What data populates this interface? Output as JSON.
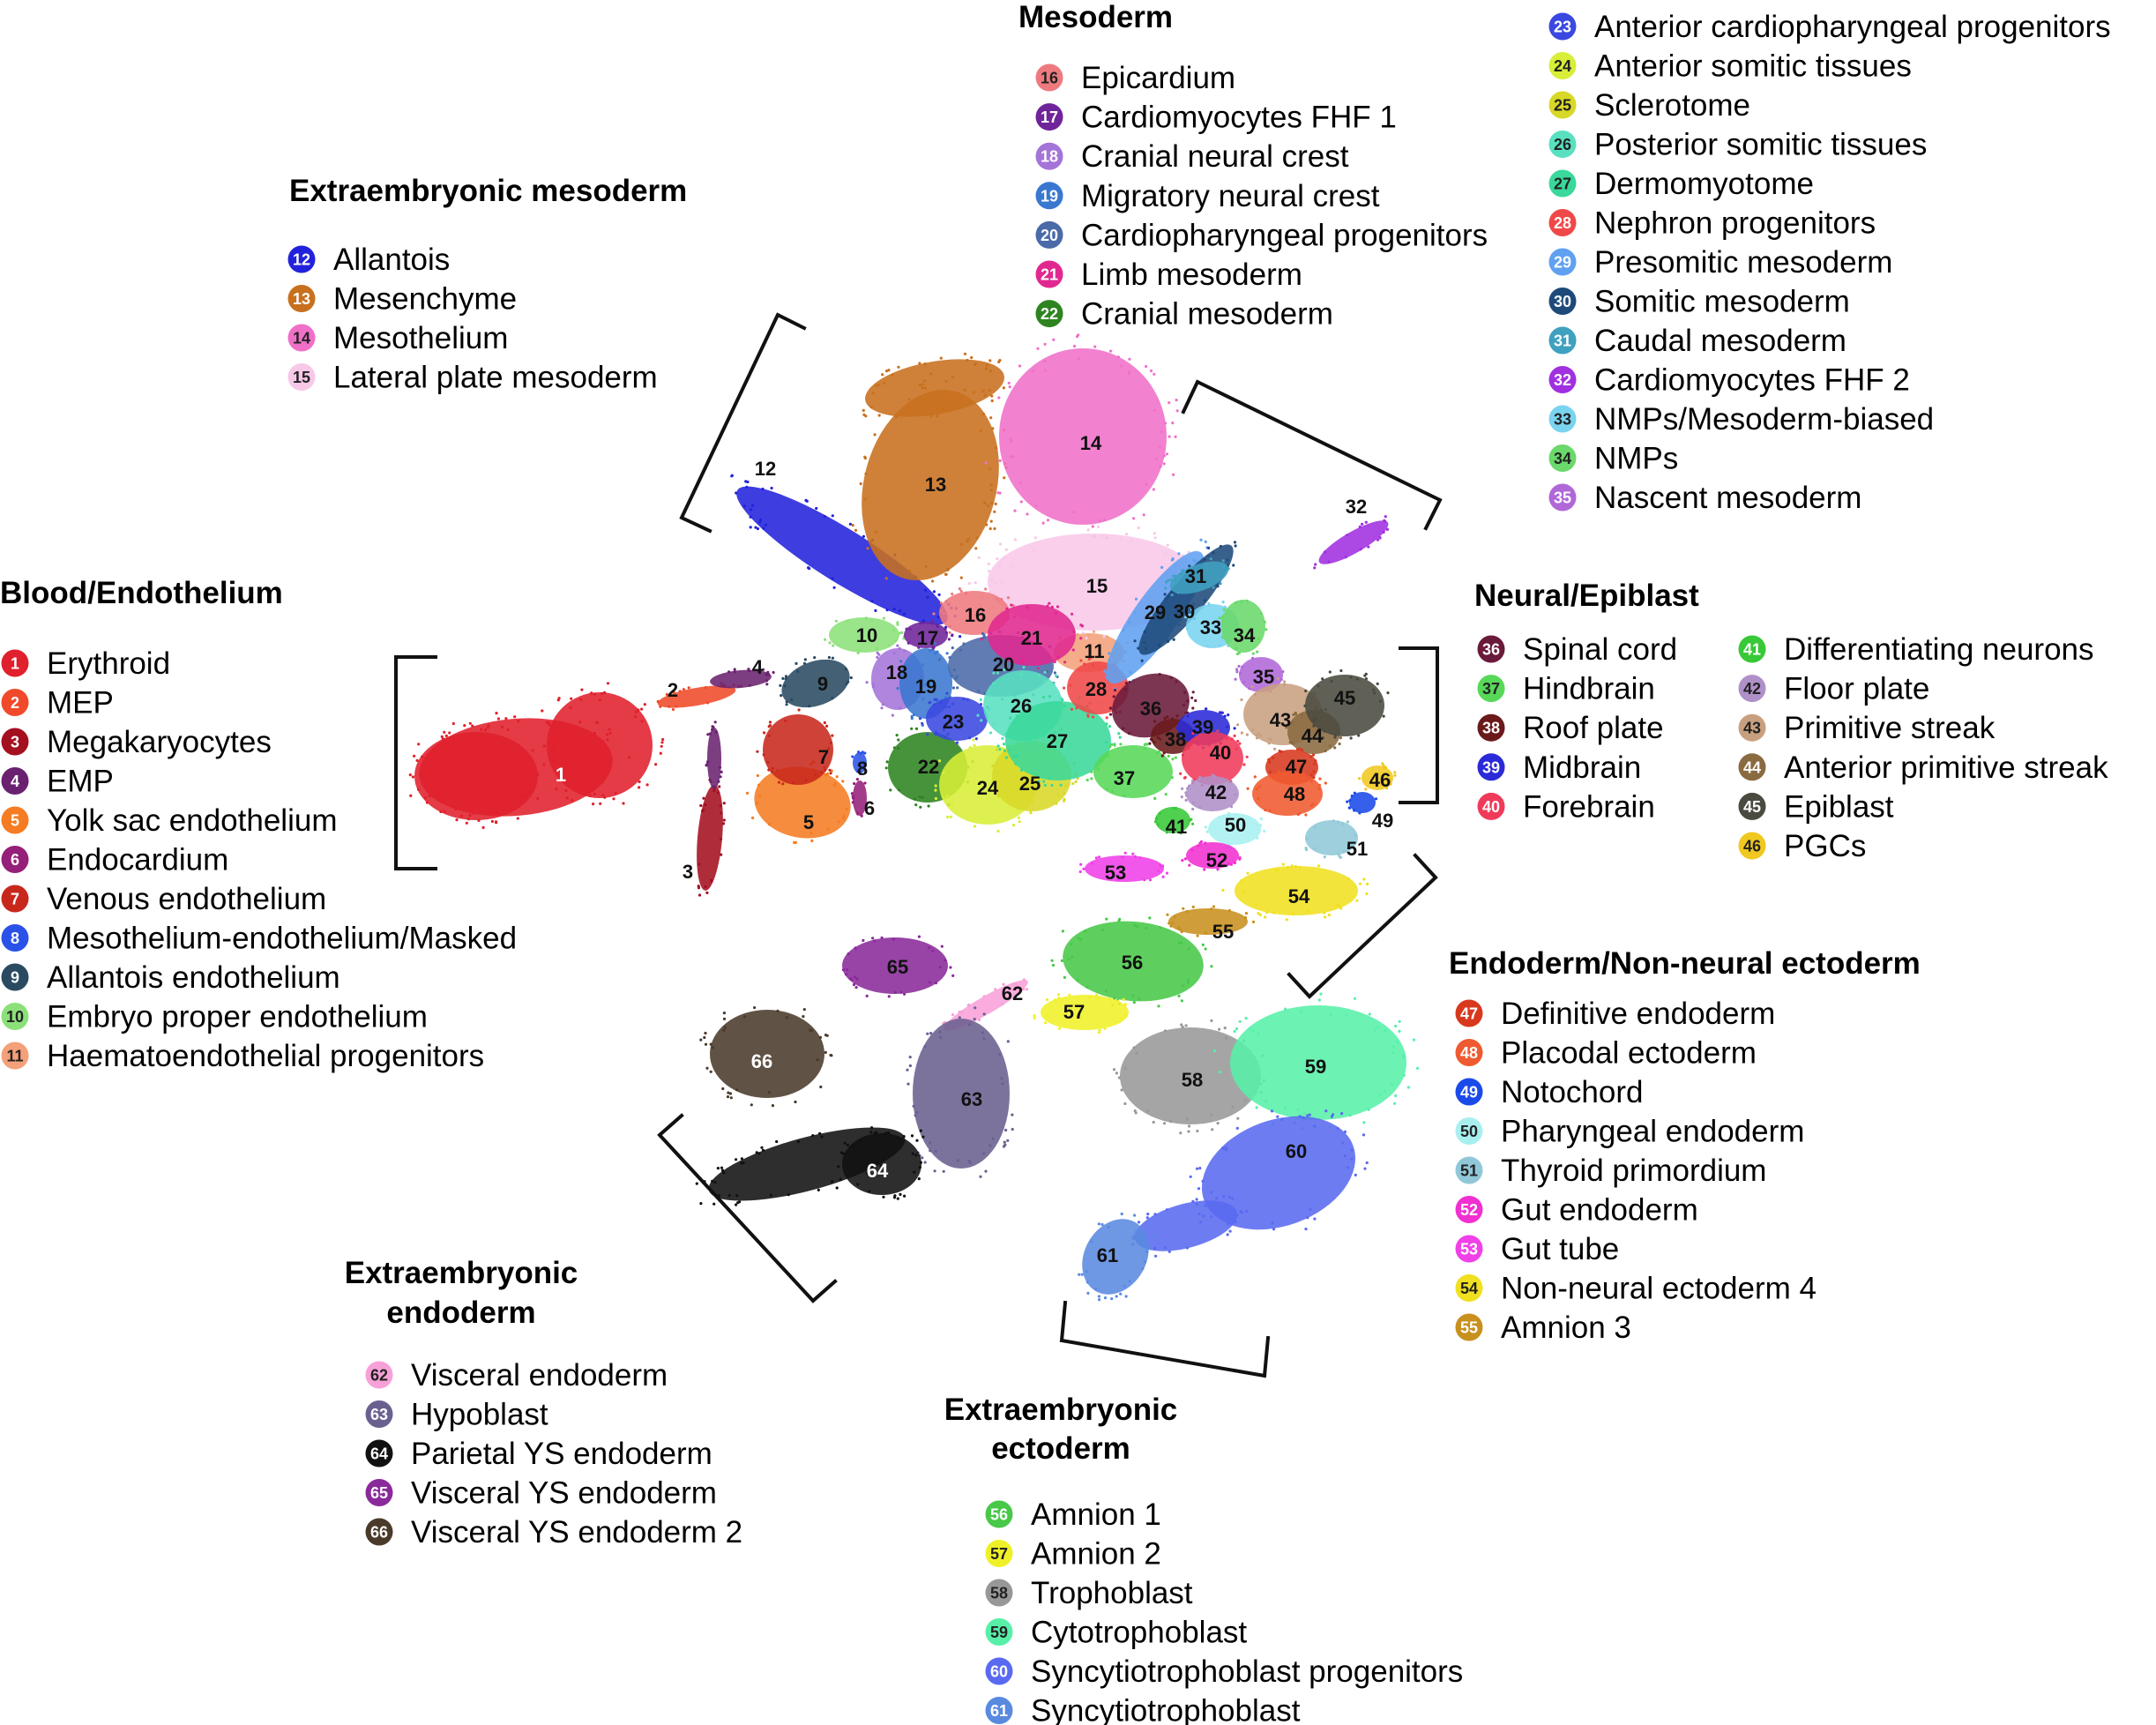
{
  "chart_data": {
    "type": "scatter",
    "title": "",
    "xlabel": "",
    "ylabel": "",
    "grid": false,
    "groups": [
      {
        "title": "Mesoderm",
        "clusters": [
          16,
          17,
          18,
          19,
          20,
          21,
          22
        ]
      },
      {
        "title": "Extraembryonic mesoderm",
        "clusters": [
          12,
          13,
          14,
          15
        ]
      },
      {
        "title": "Blood/Endothelium",
        "clusters": [
          1,
          2,
          3,
          4,
          5,
          6,
          7,
          8,
          9,
          10,
          11
        ]
      },
      {
        "title": "Neural/Epiblast",
        "clusters": [
          36,
          37,
          38,
          39,
          40,
          41,
          42,
          43,
          44,
          45,
          46
        ]
      },
      {
        "title": "Endoderm/Non-neural ectoderm",
        "clusters": [
          47,
          48,
          49,
          50,
          51,
          52,
          53,
          54,
          55
        ]
      },
      {
        "title": "Extraembryonic endoderm",
        "clusters": [
          62,
          63,
          64,
          65,
          66
        ]
      },
      {
        "title": "Extraembryonic ectoderm",
        "clusters": [
          56,
          57,
          58,
          59,
          60,
          61
        ]
      },
      {
        "title": "",
        "clusters": [
          23,
          24,
          25,
          26,
          27,
          28,
          29,
          30,
          31,
          32,
          33,
          34,
          35
        ]
      }
    ],
    "clusters": [
      {
        "id": "1",
        "name": "Erythroid",
        "color": "#e0202c",
        "group": "Blood/Endothelium"
      },
      {
        "id": "2",
        "name": "MEP",
        "color": "#f04a2a",
        "group": "Blood/Endothelium"
      },
      {
        "id": "3",
        "name": "Megakaryocytes",
        "color": "#a41020",
        "group": "Blood/Endothelium"
      },
      {
        "id": "4",
        "name": "EMP",
        "color": "#6a2270",
        "group": "Blood/Endothelium"
      },
      {
        "id": "5",
        "name": "Yolk sac endothelium",
        "color": "#f57c22",
        "group": "Blood/Endothelium"
      },
      {
        "id": "6",
        "name": "Endocardium",
        "color": "#94207a",
        "group": "Blood/Endothelium"
      },
      {
        "id": "7",
        "name": "Venous endothelium",
        "color": "#c8281c",
        "group": "Blood/Endothelium"
      },
      {
        "id": "8",
        "name": "Mesothelium-endothelium/Masked",
        "color": "#2a52e8",
        "group": "Blood/Endothelium"
      },
      {
        "id": "9",
        "name": "Allantois endothelium",
        "color": "#2a4a62",
        "group": "Blood/Endothelium"
      },
      {
        "id": "10",
        "name": "Embryo proper endothelium",
        "color": "#8ce07a",
        "group": "Blood/Endothelium"
      },
      {
        "id": "11",
        "name": "Haematoendothelial progenitors",
        "color": "#f4a07a",
        "group": "Blood/Endothelium"
      },
      {
        "id": "12",
        "name": "Allantois",
        "color": "#2222dc",
        "group": "Extraembryonic mesoderm"
      },
      {
        "id": "13",
        "name": "Mesenchyme",
        "color": "#c8701e",
        "group": "Extraembryonic mesoderm"
      },
      {
        "id": "14",
        "name": "Mesothelium",
        "color": "#f070c8",
        "group": "Extraembryonic mesoderm"
      },
      {
        "id": "15",
        "name": "Lateral plate mesoderm",
        "color": "#f8c8e8",
        "group": "Extraembryonic mesoderm"
      },
      {
        "id": "16",
        "name": "Epicardium",
        "color": "#ee7a80",
        "group": "Mesoderm"
      },
      {
        "id": "17",
        "name": "Cardiomyocytes FHF 1",
        "color": "#70249a",
        "group": "Mesoderm"
      },
      {
        "id": "18",
        "name": "Cranial neural crest",
        "color": "#a474d8",
        "group": "Mesoderm"
      },
      {
        "id": "19",
        "name": "Migratory neural crest",
        "color": "#3a78d0",
        "group": "Mesoderm"
      },
      {
        "id": "20",
        "name": "Cardiopharyngeal progenitors",
        "color": "#4a6aa8",
        "group": "Mesoderm"
      },
      {
        "id": "21",
        "name": "Limb mesoderm",
        "color": "#e02890",
        "group": "Mesoderm"
      },
      {
        "id": "22",
        "name": "Cranial mesoderm",
        "color": "#2e8420",
        "group": "Mesoderm"
      },
      {
        "id": "23",
        "name": "Anterior cardiopharyngeal progenitors",
        "color": "#3a48e0",
        "group": ""
      },
      {
        "id": "24",
        "name": "Anterior somitic tissues",
        "color": "#d8ee38",
        "group": ""
      },
      {
        "id": "25",
        "name": "Sclerotome",
        "color": "#d8d828",
        "group": ""
      },
      {
        "id": "26",
        "name": "Posterior somitic tissues",
        "color": "#58e0c0",
        "group": ""
      },
      {
        "id": "27",
        "name": "Dermomyotome",
        "color": "#3ad89a",
        "group": ""
      },
      {
        "id": "28",
        "name": "Nephron progenitors",
        "color": "#f04848",
        "group": ""
      },
      {
        "id": "29",
        "name": "Presomitic mesoderm",
        "color": "#60a0f0",
        "group": ""
      },
      {
        "id": "30",
        "name": "Somitic mesoderm",
        "color": "#1e4a7a",
        "group": ""
      },
      {
        "id": "31",
        "name": "Caudal mesoderm",
        "color": "#40a0c0",
        "group": ""
      },
      {
        "id": "32",
        "name": "Cardiomyocytes FHF 2",
        "color": "#a030e0",
        "group": ""
      },
      {
        "id": "33",
        "name": "NMPs/Mesoderm-biased",
        "color": "#7ad4f0",
        "group": ""
      },
      {
        "id": "34",
        "name": "NMPs",
        "color": "#6ad86a",
        "group": ""
      },
      {
        "id": "35",
        "name": "Nascent mesoderm",
        "color": "#b068d8",
        "group": ""
      },
      {
        "id": "36",
        "name": "Spinal cord",
        "color": "#6a1a3a",
        "group": "Neural/Epiblast"
      },
      {
        "id": "37",
        "name": "Hindbrain",
        "color": "#58d858",
        "group": "Neural/Epiblast"
      },
      {
        "id": "38",
        "name": "Roof plate",
        "color": "#6a1a1a",
        "group": "Neural/Epiblast"
      },
      {
        "id": "39",
        "name": "Midbrain",
        "color": "#2a2ad8",
        "group": "Neural/Epiblast"
      },
      {
        "id": "40",
        "name": "Forebrain",
        "color": "#f03a5a",
        "group": "Neural/Epiblast"
      },
      {
        "id": "41",
        "name": "Differentiating neurons",
        "color": "#38c838",
        "group": "Neural/Epiblast"
      },
      {
        "id": "42",
        "name": "Floor plate",
        "color": "#b090c8",
        "group": "Neural/Epiblast"
      },
      {
        "id": "43",
        "name": "Primitive streak",
        "color": "#c8a080",
        "group": "Neural/Epiblast"
      },
      {
        "id": "44",
        "name": "Anterior primitive streak",
        "color": "#8a6a40",
        "group": "Neural/Epiblast"
      },
      {
        "id": "45",
        "name": "Epiblast",
        "color": "#4a4a40",
        "group": "Neural/Epiblast"
      },
      {
        "id": "46",
        "name": "PGCs",
        "color": "#f0c820",
        "group": "Neural/Epiblast"
      },
      {
        "id": "47",
        "name": "Definitive endoderm",
        "color": "#d8381e",
        "group": "Endoderm/Non-neural ectoderm"
      },
      {
        "id": "48",
        "name": "Placodal ectoderm",
        "color": "#f05a30",
        "group": "Endoderm/Non-neural ectoderm"
      },
      {
        "id": "49",
        "name": "Notochord",
        "color": "#1a4ae8",
        "group": "Endoderm/Non-neural ectoderm"
      },
      {
        "id": "50",
        "name": "Pharyngeal endoderm",
        "color": "#a8f0f0",
        "group": "Endoderm/Non-neural ectoderm"
      },
      {
        "id": "51",
        "name": "Thyroid primordium",
        "color": "#90c8d8",
        "group": "Endoderm/Non-neural ectoderm"
      },
      {
        "id": "52",
        "name": "Gut endoderm",
        "color": "#f030d0",
        "group": "Endoderm/Non-neural ectoderm"
      },
      {
        "id": "53",
        "name": "Gut tube",
        "color": "#f040e8",
        "group": "Endoderm/Non-neural ectoderm"
      },
      {
        "id": "54",
        "name": "Non-neural ectoderm 4",
        "color": "#f0e020",
        "group": "Endoderm/Non-neural ectoderm"
      },
      {
        "id": "55",
        "name": "Amnion 3",
        "color": "#c8901e",
        "group": "Endoderm/Non-neural ectoderm"
      },
      {
        "id": "56",
        "name": "Amnion 1",
        "color": "#48c848",
        "group": "Extraembryonic ectoderm"
      },
      {
        "id": "57",
        "name": "Amnion 2",
        "color": "#f0f028",
        "group": "Extraembryonic ectoderm"
      },
      {
        "id": "58",
        "name": "Trophoblast",
        "color": "#989898",
        "group": "Extraembryonic ectoderm"
      },
      {
        "id": "59",
        "name": "Cytotrophoblast",
        "color": "#58f0a8",
        "group": "Extraembryonic ectoderm"
      },
      {
        "id": "60",
        "name": "Syncytiotrophoblast progenitors",
        "color": "#5a6af0",
        "group": "Extraembryonic ectoderm"
      },
      {
        "id": "61",
        "name": "Syncytiotrophoblast",
        "color": "#5a8ae0",
        "group": "Extraembryonic ectoderm"
      },
      {
        "id": "62",
        "name": "Visceral endoderm",
        "color": "#f8a0d8",
        "group": "Extraembryonic endoderm"
      },
      {
        "id": "63",
        "name": "Hypoblast",
        "color": "#6a6090",
        "group": "Extraembryonic endoderm"
      },
      {
        "id": "64",
        "name": "Parietal YS endoderm",
        "color": "#111111",
        "group": "Extraembryonic endoderm"
      },
      {
        "id": "65",
        "name": "Visceral YS endoderm",
        "color": "#8a2a9a",
        "group": "Extraembryonic endoderm"
      },
      {
        "id": "66",
        "name": "Visceral YS endoderm 2",
        "color": "#4a3a2a",
        "group": "Extraembryonic endoderm"
      }
    ]
  }
}
